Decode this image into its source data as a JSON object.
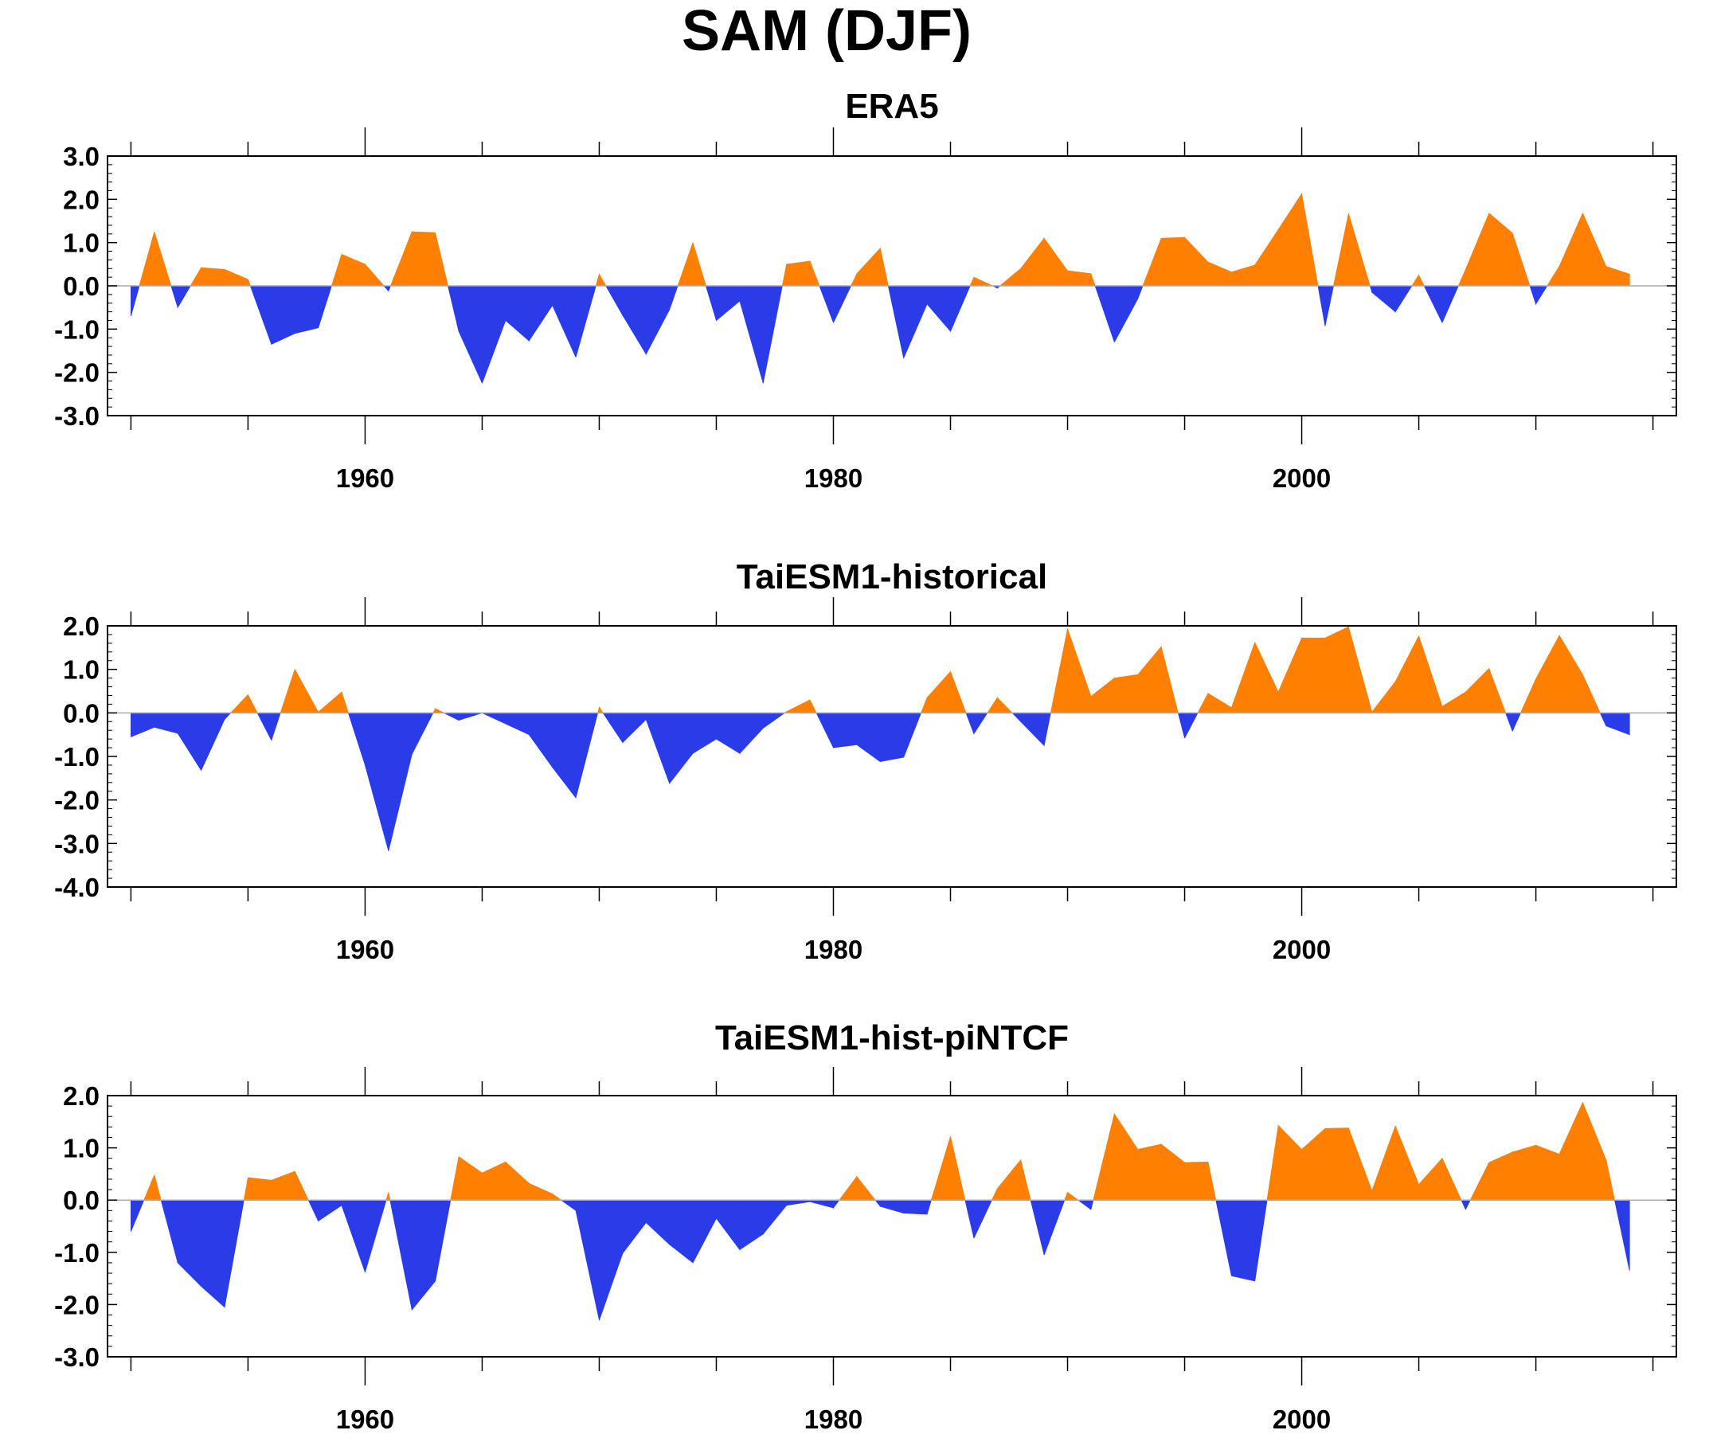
{
  "title": "SAM (DJF)",
  "colors": {
    "positive": "#ff8000",
    "negative": "#2a3ce8",
    "zero_line": "#aaaaaa"
  },
  "chart_data": [
    {
      "type": "area",
      "title": "ERA5",
      "xlim": [
        1949,
        2016
      ],
      "ylim": [
        -3,
        3
      ],
      "yticks": [
        "-3.0",
        "-2.0",
        "-1.0",
        "0.0",
        "1.0",
        "2.0",
        "3.0"
      ],
      "xticks": [
        "1960",
        "1980",
        "2000"
      ],
      "x": [
        1950,
        1951,
        1952,
        1953,
        1954,
        1955,
        1956,
        1957,
        1958,
        1959,
        1960,
        1961,
        1962,
        1963,
        1964,
        1965,
        1966,
        1967,
        1968,
        1969,
        1970,
        1971,
        1972,
        1973,
        1974,
        1975,
        1976,
        1977,
        1978,
        1979,
        1980,
        1981,
        1982,
        1983,
        1984,
        1985,
        1986,
        1987,
        1988,
        1989,
        1990,
        1991,
        1992,
        1993,
        1994,
        1995,
        1996,
        1997,
        1998,
        1999,
        2000,
        2001,
        2002,
        2003,
        2004,
        2005,
        2006,
        2007,
        2008,
        2009,
        2010,
        2011,
        2012,
        2013,
        2014
      ],
      "values": [
        -0.7,
        1.25,
        -0.5,
        0.42,
        0.38,
        0.15,
        -1.35,
        -1.1,
        -0.97,
        0.73,
        0.5,
        -0.12,
        1.25,
        1.23,
        -1.05,
        -2.25,
        -0.8,
        -1.27,
        -0.45,
        -1.65,
        0.27,
        -0.68,
        -1.58,
        -0.55,
        1.0,
        -0.8,
        -0.35,
        -2.25,
        0.5,
        0.57,
        -0.85,
        0.28,
        0.87,
        -1.67,
        -0.42,
        -1.05,
        0.2,
        -0.05,
        0.4,
        1.1,
        0.35,
        0.28,
        -1.3,
        -0.3,
        1.1,
        1.12,
        0.55,
        0.32,
        0.48,
        1.3,
        2.13,
        -0.93,
        1.67,
        -0.15,
        -0.6,
        0.25,
        -0.85,
        0.38,
        1.68,
        1.22,
        -0.42,
        0.45,
        1.68,
        0.45,
        0.27
      ]
    },
    {
      "type": "area",
      "title": "TaiESM1-historical",
      "xlim": [
        1949,
        2016
      ],
      "ylim": [
        -4,
        2
      ],
      "yticks": [
        "-4.0",
        "-3.0",
        "-2.0",
        "-1.0",
        "0.0",
        "1.0",
        "2.0"
      ],
      "xticks": [
        "1960",
        "1980",
        "2000"
      ],
      "x": [
        1950,
        1951,
        1952,
        1953,
        1954,
        1955,
        1956,
        1957,
        1958,
        1959,
        1960,
        1961,
        1962,
        1963,
        1964,
        1965,
        1966,
        1967,
        1968,
        1969,
        1970,
        1971,
        1972,
        1973,
        1974,
        1975,
        1976,
        1977,
        1978,
        1979,
        1980,
        1981,
        1982,
        1983,
        1984,
        1985,
        1986,
        1987,
        1988,
        1989,
        1990,
        1991,
        1992,
        1993,
        1994,
        1995,
        1996,
        1997,
        1998,
        1999,
        2000,
        2001,
        2002,
        2003,
        2004,
        2005,
        2006,
        2007,
        2008,
        2009,
        2010,
        2011,
        2012,
        2013,
        2014
      ],
      "values": [
        -0.55,
        -0.33,
        -0.47,
        -1.32,
        -0.15,
        0.42,
        -0.63,
        1.0,
        0.02,
        0.48,
        -1.2,
        -3.17,
        -0.95,
        0.1,
        -0.17,
        0.0,
        -0.25,
        -0.5,
        -1.25,
        -1.95,
        0.13,
        -0.68,
        -0.15,
        -1.62,
        -0.93,
        -0.6,
        -0.93,
        -0.35,
        0.03,
        0.3,
        -0.8,
        -0.73,
        -1.12,
        -1.02,
        0.35,
        0.95,
        -0.48,
        0.35,
        -0.2,
        -0.75,
        1.93,
        0.38,
        0.8,
        0.88,
        1.52,
        -0.58,
        0.45,
        0.12,
        1.62,
        0.48,
        1.72,
        1.72,
        1.98,
        0.02,
        0.72,
        1.77,
        0.15,
        0.48,
        1.02,
        -0.42,
        0.78,
        1.78,
        0.88,
        -0.3,
        -0.5
      ]
    },
    {
      "type": "area",
      "title": "TaiESM1-hist-piNTCF",
      "xlim": [
        1949,
        2016
      ],
      "ylim": [
        -3,
        2
      ],
      "yticks": [
        "-3.0",
        "-2.0",
        "-1.0",
        "0.0",
        "1.0",
        "2.0"
      ],
      "xticks": [
        "1960",
        "1980",
        "2000"
      ],
      "x": [
        1950,
        1951,
        1952,
        1953,
        1954,
        1955,
        1956,
        1957,
        1958,
        1959,
        1960,
        1961,
        1962,
        1963,
        1964,
        1965,
        1966,
        1967,
        1968,
        1969,
        1970,
        1971,
        1972,
        1973,
        1974,
        1975,
        1976,
        1977,
        1978,
        1979,
        1980,
        1981,
        1982,
        1983,
        1984,
        1985,
        1986,
        1987,
        1988,
        1989,
        1990,
        1991,
        1992,
        1993,
        1994,
        1995,
        1996,
        1997,
        1998,
        1999,
        2000,
        2001,
        2002,
        2003,
        2004,
        2005,
        2006,
        2007,
        2008,
        2009,
        2010,
        2011,
        2012,
        2013,
        2014
      ],
      "values": [
        -0.6,
        0.48,
        -1.2,
        -1.65,
        -2.05,
        0.43,
        0.38,
        0.55,
        -0.4,
        -0.1,
        -1.38,
        0.15,
        -2.1,
        -1.55,
        0.83,
        0.52,
        0.73,
        0.32,
        0.12,
        -0.2,
        -2.3,
        -1.02,
        -0.43,
        -0.85,
        -1.2,
        -0.35,
        -0.95,
        -0.65,
        -0.1,
        -0.03,
        -0.15,
        0.45,
        -0.12,
        -0.25,
        -0.27,
        1.22,
        -0.73,
        0.22,
        0.77,
        -1.05,
        0.15,
        -0.18,
        1.65,
        0.97,
        1.07,
        0.72,
        0.73,
        -1.45,
        -1.55,
        1.43,
        0.97,
        1.37,
        1.38,
        0.18,
        1.42,
        0.3,
        0.8,
        -0.18,
        0.72,
        0.92,
        1.05,
        0.88,
        1.87,
        0.77,
        -1.35
      ]
    }
  ]
}
